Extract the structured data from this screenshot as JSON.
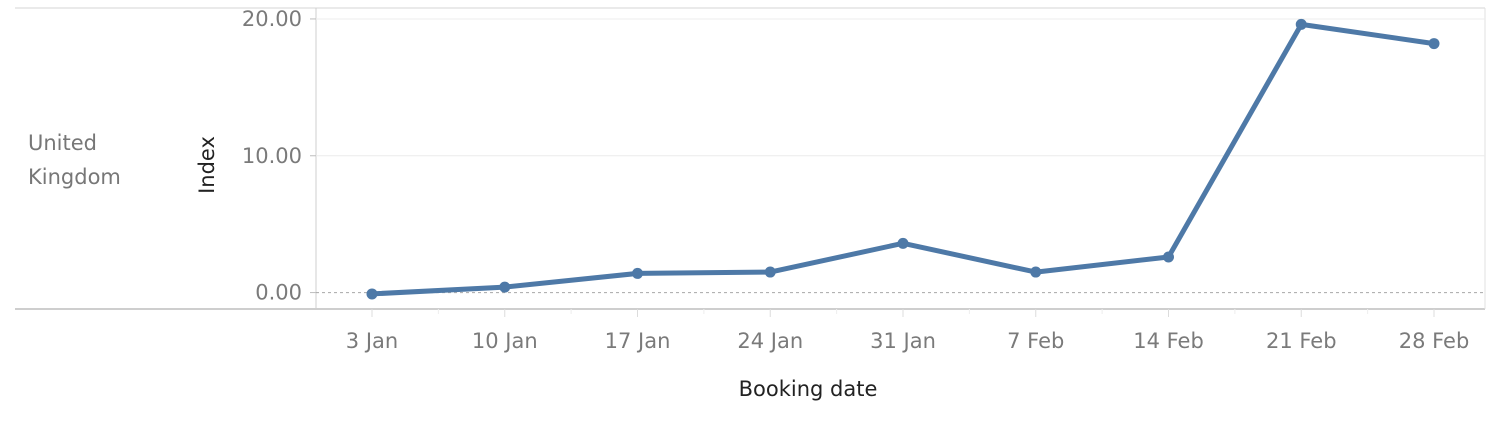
{
  "row_header": {
    "label_line1": "United",
    "label_line2": "Kingdom"
  },
  "chart_data": {
    "type": "line",
    "xlabel": "Booking date",
    "ylabel": "Index",
    "x_tick_labels": [
      "3 Jan",
      "10 Jan",
      "17 Jan",
      "24 Jan",
      "31 Jan",
      "7 Feb",
      "14 Feb",
      "21 Feb",
      "28 Feb"
    ],
    "y_tick_labels": [
      "0.00",
      "10.00",
      "20.00"
    ],
    "y_ticks": [
      0,
      10,
      20
    ],
    "ylim": [
      -1.2,
      20.8
    ],
    "grid": true,
    "zero_line": "dashed",
    "series": [
      {
        "color": "#4e79a7",
        "values": [
          -0.1,
          0.4,
          1.4,
          1.5,
          3.6,
          1.5,
          2.6,
          19.6,
          18.2
        ]
      }
    ]
  }
}
